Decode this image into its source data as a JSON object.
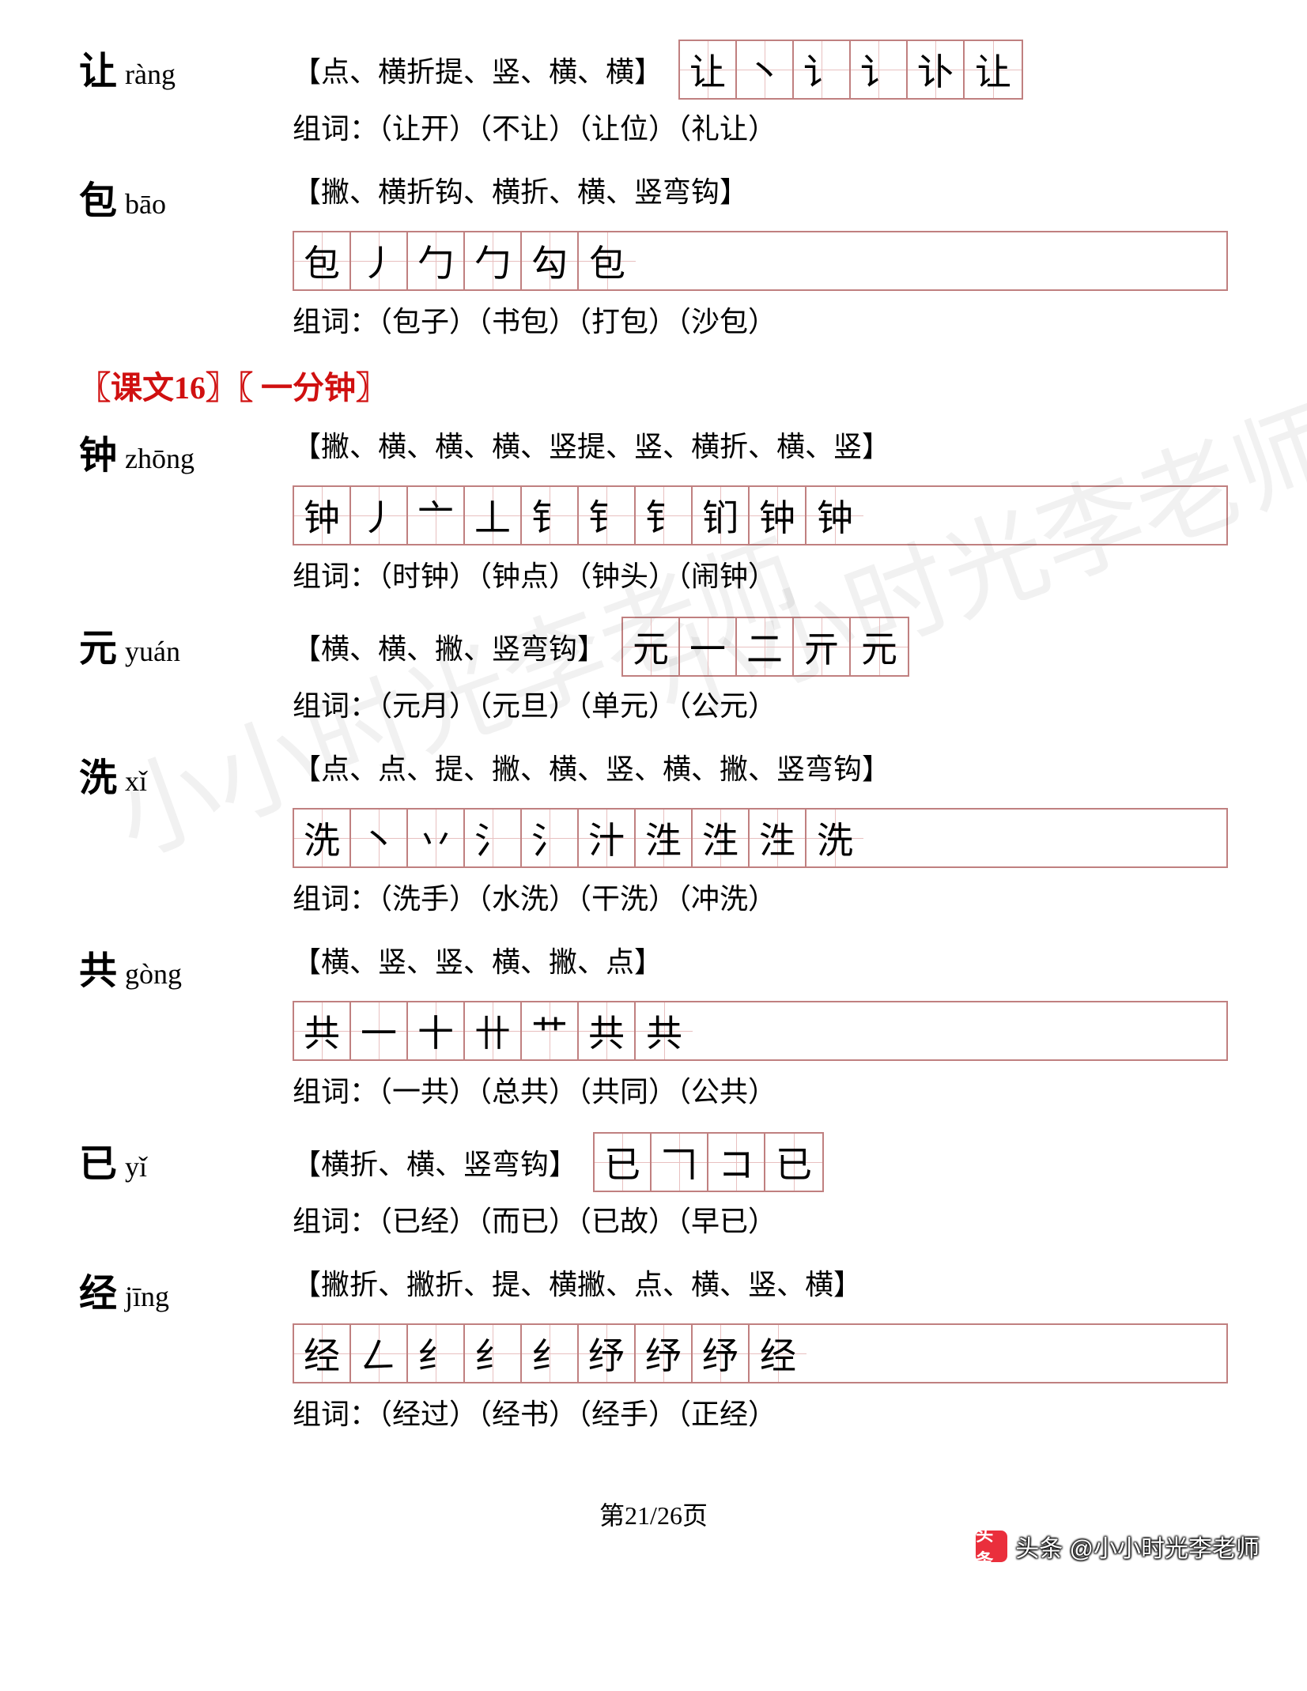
{
  "entries_top": [
    {
      "char": "让",
      "pinyin": "ràng",
      "strokes_desc": "【点、横折提、竖、横、横】",
      "stroke_cells": [
        "让",
        "丶",
        "讠",
        "讠",
        "讣",
        "让"
      ],
      "grid_inline": true,
      "words_label": "组词：",
      "words": "（让开）（不让）（让位）（礼让）"
    },
    {
      "char": "包",
      "pinyin": "bāo",
      "strokes_desc": "【撇、横折钩、横折、横、竖弯钩】",
      "stroke_cells": [
        "包",
        "丿",
        "勹",
        "勹",
        "勾",
        "包"
      ],
      "grid_inline": false,
      "words_label": "组词：",
      "words": "（包子）（书包）（打包）（沙包）"
    }
  ],
  "section": {
    "text": "〖课文16〗〖 一分钟〗"
  },
  "entries_bottom": [
    {
      "char": "钟",
      "pinyin": "zhōng",
      "strokes_desc": "【撇、横、横、横、竖提、竖、横折、横、竖】",
      "stroke_cells": [
        "钟",
        "丿",
        "亠",
        "丄",
        "钅",
        "钅",
        "钅",
        "钔",
        "钟",
        "钟"
      ],
      "grid_inline": false,
      "words_label": "组词：",
      "words": "（时钟）（钟点）（钟头）（闹钟）"
    },
    {
      "char": "元",
      "pinyin": "yuán",
      "strokes_desc": "【横、横、撇、竖弯钩】",
      "stroke_cells": [
        "元",
        "一",
        "二",
        "亓",
        "元"
      ],
      "grid_inline": true,
      "words_label": "组词：",
      "words": "（元月）（元旦）（单元）（公元）"
    },
    {
      "char": "洗",
      "pinyin": "xǐ",
      "strokes_desc": "【点、点、提、撇、横、竖、横、撇、竖弯钩】",
      "stroke_cells": [
        "洗",
        "丶",
        "丷",
        "氵",
        "氵",
        "汁",
        "泩",
        "泩",
        "泩",
        "洗"
      ],
      "grid_inline": false,
      "words_label": "组词：",
      "words": "（洗手）（水洗）（干洗）（冲洗）"
    },
    {
      "char": "共",
      "pinyin": "gòng",
      "strokes_desc": "【横、竖、竖、横、撇、点】",
      "stroke_cells": [
        "共",
        "一",
        "十",
        "卄",
        "艹",
        "共",
        "共"
      ],
      "grid_inline": false,
      "words_label": "组词：",
      "words": "（一共）（总共）（共同）（公共）"
    },
    {
      "char": "已",
      "pinyin": "yǐ",
      "strokes_desc": "【横折、横、竖弯钩】",
      "stroke_cells": [
        "已",
        "𠃍",
        "コ",
        "已"
      ],
      "grid_inline": true,
      "words_label": "组词：",
      "words": "（已经）（而已）（已故）（早已）"
    },
    {
      "char": "经",
      "pinyin": "jīng",
      "strokes_desc": "【撇折、撇折、提、横撇、点、横、竖、横】",
      "stroke_cells": [
        "经",
        "𠃋",
        "纟",
        "纟",
        "纟",
        "纾",
        "纾",
        "纾",
        "经"
      ],
      "grid_inline": false,
      "words_label": "组词：",
      "words": "（经过）（经书）（经手）（正经）"
    }
  ],
  "page_num": "第21/26页",
  "attribution": "头条 @小小时光李老师",
  "watermark": "小小时光李老师",
  "colors": {
    "grid_border": "#c08080",
    "grid_guide": "#e8c0c0",
    "section_red": "#d01010",
    "text": "#000000",
    "bg": "#ffffff"
  }
}
